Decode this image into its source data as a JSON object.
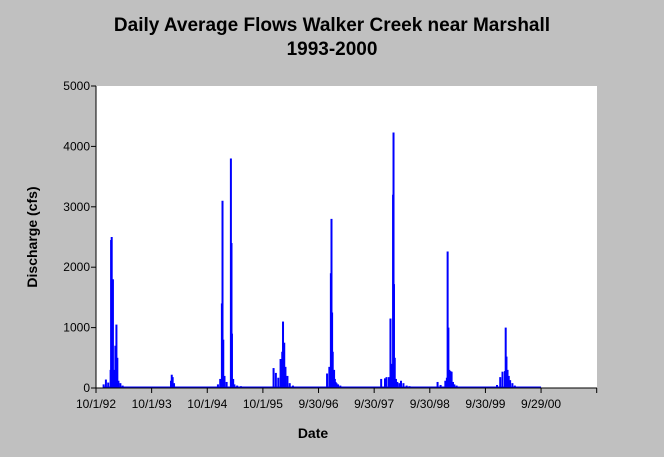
{
  "chart_data": {
    "type": "bar",
    "title": "Daily Average Flows Walker Creek near Marshall",
    "subtitle": "1993-2000",
    "xlabel": "Date",
    "ylabel": "Discharge (cfs)",
    "ylim": [
      0,
      5000
    ],
    "y_ticks": [
      0,
      1000,
      2000,
      3000,
      4000,
      5000
    ],
    "xlim": [
      "1992-10-01",
      "2001-10-01"
    ],
    "x_ticks": [
      {
        "date": "1992-10-01",
        "label": "10/1/92"
      },
      {
        "date": "1993-10-01",
        "label": "10/1/93"
      },
      {
        "date": "1994-10-01",
        "label": "10/1/94"
      },
      {
        "date": "1995-10-01",
        "label": "10/1/95"
      },
      {
        "date": "1996-09-30",
        "label": "9/30/96"
      },
      {
        "date": "1997-09-30",
        "label": "9/30/97"
      },
      {
        "date": "1998-09-30",
        "label": "9/30/98"
      },
      {
        "date": "1999-09-30",
        "label": "9/30/99"
      },
      {
        "date": "2000-09-29",
        "label": "9/29/00"
      },
      {
        "date": "2001-09-29",
        "label": ""
      }
    ],
    "grid": false,
    "series_color": "#0000ff",
    "series": [
      {
        "x": [
          "1992-11-20",
          "1992-12-05",
          "1992-12-20",
          "1993-01-05",
          "1993-01-08",
          "1993-01-12",
          "1993-01-20",
          "1993-01-28",
          "1993-02-05",
          "1993-02-12",
          "1993-02-18",
          "1993-02-25",
          "1993-03-10",
          "1993-03-25",
          "1994-02-05",
          "1994-02-10",
          "1994-02-16",
          "1994-02-25",
          "1994-12-10",
          "1994-12-25",
          "1995-01-05",
          "1995-01-09",
          "1995-01-14",
          "1995-01-22",
          "1995-02-05",
          "1995-03-05",
          "1995-03-09",
          "1995-03-12",
          "1995-03-20",
          "1995-03-28",
          "1995-04-15",
          "1995-05-10",
          "1995-12-10",
          "1995-12-25",
          "1996-01-10",
          "1996-01-25",
          "1996-02-05",
          "1996-02-10",
          "1996-02-18",
          "1996-02-26",
          "1996-03-10",
          "1996-03-25",
          "1996-04-15",
          "1996-11-25",
          "1996-12-10",
          "1996-12-20",
          "1996-12-24",
          "1996-12-28",
          "1997-01-01",
          "1997-01-10",
          "1997-01-15",
          "1997-01-20",
          "1997-01-26",
          "1997-02-05",
          "1997-02-20",
          "1997-11-15",
          "1997-12-10",
          "1997-12-20",
          "1998-01-05",
          "1998-01-15",
          "1998-01-25",
          "1998-02-01",
          "1998-02-04",
          "1998-02-07",
          "1998-02-12",
          "1998-02-20",
          "1998-03-01",
          "1998-03-15",
          "1998-03-25",
          "1998-04-10",
          "1998-05-01",
          "1998-05-20",
          "1998-11-20",
          "1998-12-10",
          "1999-01-10",
          "1999-01-20",
          "1999-01-25",
          "1999-01-30",
          "1999-02-05",
          "1999-02-12",
          "1999-02-20",
          "1999-03-01",
          "1999-03-10",
          "1999-03-25",
          "1999-12-15",
          "2000-01-05",
          "2000-01-20",
          "2000-02-05",
          "2000-02-10",
          "2000-02-15",
          "2000-02-22",
          "2000-03-01",
          "2000-03-10",
          "2000-03-25",
          "2000-04-10"
        ],
        "values": [
          60,
          140,
          90,
          300,
          2450,
          2500,
          1800,
          300,
          700,
          1050,
          500,
          120,
          80,
          40,
          120,
          220,
          180,
          80,
          60,
          150,
          1400,
          3100,
          800,
          200,
          100,
          3800,
          2400,
          900,
          150,
          60,
          40,
          30,
          330,
          250,
          170,
          480,
          600,
          1100,
          750,
          350,
          200,
          80,
          40,
          240,
          350,
          1900,
          2800,
          1250,
          600,
          300,
          150,
          100,
          80,
          60,
          40,
          150,
          160,
          180,
          180,
          1150,
          400,
          3200,
          4230,
          1720,
          500,
          150,
          100,
          80,
          120,
          80,
          40,
          30,
          100,
          50,
          120,
          170,
          2260,
          1000,
          300,
          280,
          270,
          100,
          60,
          40,
          50,
          180,
          270,
          280,
          1000,
          520,
          300,
          200,
          130,
          80,
          40
        ]
      }
    ]
  }
}
